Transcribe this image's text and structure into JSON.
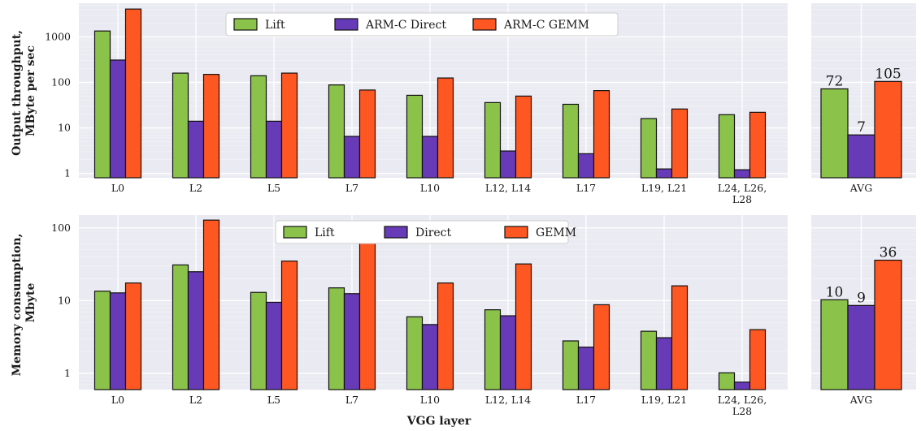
{
  "colors": {
    "lift": "#8bc34a",
    "direct": "#673ab7",
    "gemm": "#ff5722",
    "panel_bg": "#eaeaf2",
    "grid": "#ffffff"
  },
  "chart_data": [
    {
      "type": "bar",
      "scale": "log",
      "ylabel": "Output throughput,\nMByte per sec",
      "ylim": [
        0.8,
        5500
      ],
      "yticks": [
        1,
        10,
        100,
        1000
      ],
      "ytick_labels": [
        "1",
        "10",
        "100",
        "1000"
      ],
      "categories": [
        "L0",
        "L2",
        "L5",
        "L7",
        "L10",
        "L12, L14",
        "L17",
        "L19, L21",
        "L24, L26,\nL28"
      ],
      "series": [
        {
          "name": "Lift",
          "values": [
            1350,
            160,
            140,
            88,
            52,
            36,
            33,
            16,
            19.5
          ]
        },
        {
          "name": "ARM-C Direct",
          "values": [
            310,
            14,
            14,
            6.5,
            6.5,
            3.1,
            2.7,
            1.25,
            1.2
          ]
        },
        {
          "name": "ARM-C GEMM",
          "values": [
            4100,
            150,
            160,
            68,
            125,
            50,
            66,
            26,
            22
          ]
        }
      ],
      "legend": "top-center",
      "grid": true
    },
    {
      "type": "bar",
      "scale": "log",
      "ylim": [
        0.8,
        5500
      ],
      "categories": [
        "AVG"
      ],
      "series": [
        {
          "name": "Lift",
          "values": [
            72
          ]
        },
        {
          "name": "ARM-C Direct",
          "values": [
            7
          ]
        },
        {
          "name": "ARM-C GEMM",
          "values": [
            105
          ]
        }
      ],
      "data_labels": [
        "72",
        "7",
        "105"
      ],
      "grid": true
    },
    {
      "type": "bar",
      "scale": "log",
      "ylabel": "Memory consumption,\nMbyte",
      "xlabel": "VGG layer",
      "ylim": [
        0.6,
        150
      ],
      "yticks": [
        1,
        10,
        100
      ],
      "ytick_labels": [
        "1",
        "10",
        "100"
      ],
      "categories": [
        "L0",
        "L2",
        "L5",
        "L7",
        "L10",
        "L12, L14",
        "L17",
        "L19, L21",
        "L24, L26,\nL28"
      ],
      "series": [
        {
          "name": "Lift",
          "values": [
            13.5,
            31,
            13,
            15,
            6,
            7.5,
            2.8,
            3.8,
            1.02
          ]
        },
        {
          "name": "Direct",
          "values": [
            12.8,
            25,
            9.5,
            12.5,
            4.7,
            6.2,
            2.3,
            3.1,
            0.76
          ]
        },
        {
          "name": "GEMM",
          "values": [
            17.5,
            128,
            35,
            64,
            17.5,
            32,
            8.8,
            16,
            4
          ]
        }
      ],
      "legend": "top-center",
      "grid": true
    },
    {
      "type": "bar",
      "scale": "log",
      "ylim": [
        0.6,
        150
      ],
      "categories": [
        "AVG"
      ],
      "series": [
        {
          "name": "Lift",
          "values": [
            10.3
          ]
        },
        {
          "name": "Direct",
          "values": [
            8.6
          ]
        },
        {
          "name": "GEMM",
          "values": [
            36
          ]
        }
      ],
      "data_labels": [
        "10",
        "9",
        "36"
      ],
      "grid": true
    }
  ]
}
